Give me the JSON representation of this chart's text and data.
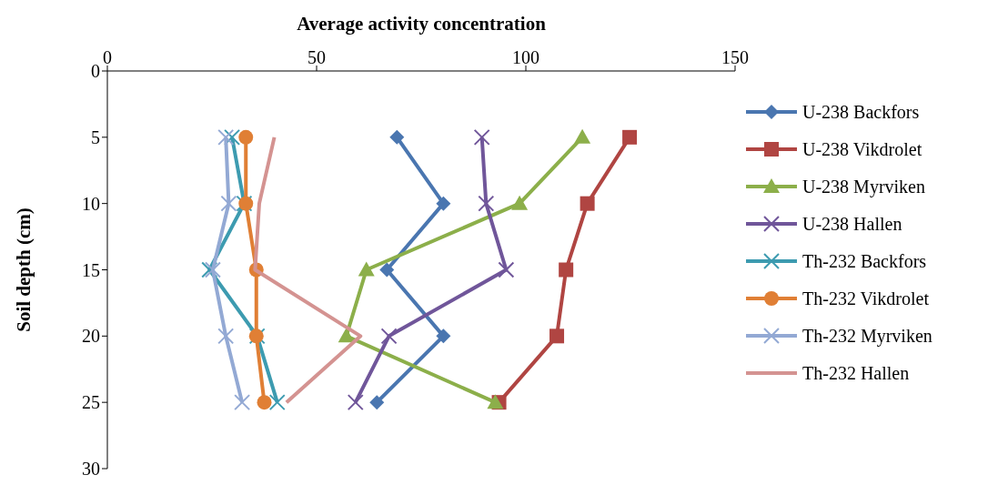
{
  "chart_data": {
    "type": "line",
    "xlabel": "Average activity concentration",
    "ylabel": "Soil depth (cm)",
    "xlim": [
      0,
      150
    ],
    "xticks": [
      0,
      50,
      100,
      150
    ],
    "ylim": [
      30,
      0
    ],
    "yticks": [
      0,
      5,
      10,
      15,
      20,
      25,
      30
    ],
    "legend": "right",
    "line_style": "solid",
    "series": [
      {
        "name": "U-238 Backfors",
        "color": "#4a76b0",
        "marker": "diamond",
        "x": [
          69.2,
          80.3,
          66.8,
          80.3,
          64.4
        ],
        "values": [
          5,
          10,
          15,
          20,
          25
        ]
      },
      {
        "name": "U-238 Vikdrolet",
        "color": "#b04542",
        "marker": "square",
        "x": [
          124.8,
          114.7,
          109.6,
          107.4,
          93.6
        ],
        "values": [
          5,
          10,
          15,
          20,
          25
        ]
      },
      {
        "name": "U-238 Myrviken",
        "color": "#8caf4a",
        "marker": "triangle",
        "x": [
          113.5,
          98.5,
          61.9,
          57.1,
          92.7
        ],
        "values": [
          5,
          10,
          15,
          20,
          25
        ]
      },
      {
        "name": "U-238 Hallen",
        "color": "#70569a",
        "marker": "cross",
        "x": [
          89.5,
          90.5,
          95.3,
          67.3,
          59.3
        ],
        "values": [
          5,
          10,
          15,
          20,
          25
        ]
      },
      {
        "name": "Th-232 Backfors",
        "color": "#3d9bb0",
        "marker": "cross",
        "x": [
          29.8,
          32.7,
          24.4,
          35.8,
          40.6
        ],
        "values": [
          5,
          10,
          15,
          20,
          25
        ]
      },
      {
        "name": "Th-232 Vikdrolet",
        "color": "#e07f35",
        "marker": "circle",
        "x": [
          33.1,
          33.1,
          35.6,
          35.6,
          37.5
        ],
        "values": [
          5,
          10,
          15,
          20,
          25
        ]
      },
      {
        "name": "Th-232 Myrviken",
        "color": "#93a9d4",
        "marker": "cross",
        "x": [
          28.3,
          29.0,
          25.2,
          28.3,
          32.2
        ],
        "values": [
          5,
          10,
          15,
          20,
          25
        ]
      },
      {
        "name": "Th-232 Hallen",
        "color": "#d49391",
        "marker": "none",
        "x": [
          39.9,
          36.3,
          35.3,
          60.5,
          42.8
        ],
        "values": [
          5,
          10,
          15,
          20,
          25
        ]
      }
    ]
  }
}
